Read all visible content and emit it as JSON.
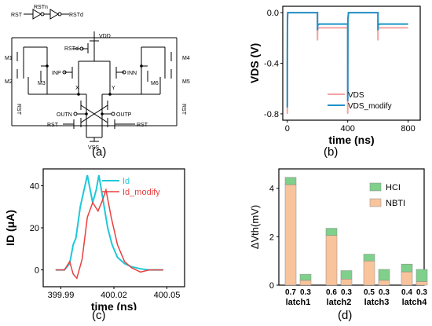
{
  "panels": {
    "a": {
      "label": "(a)",
      "header": {
        "in": "RST",
        "mid": "RSTn",
        "out": "RSTd"
      },
      "labels": {
        "rstd": "RSTd",
        "vdd": "VDD",
        "m1": "M1",
        "m2": "M2",
        "m3": "M3",
        "m4": "M4",
        "m5": "M5",
        "m6": "M6",
        "inp": "INP",
        "inn": "INN",
        "x": "X",
        "y": "Y",
        "rst_left": "RST",
        "rst_right": "RST",
        "outn": "OUTN",
        "outp": "OUTP",
        "rst_bot_left": "RST",
        "rst_bot_right": "RST",
        "vss": "VSS"
      }
    },
    "b": {
      "label": "(b)",
      "xlabel": "time (ns)",
      "ylabel": "VDS (V)",
      "xticks": [
        "0",
        "400",
        "800"
      ],
      "yticks": [
        "0.0",
        "-0.4",
        "-0.8"
      ],
      "legend": [
        "VDS",
        "VDS_modify"
      ],
      "colors": {
        "VDS": "#f4a3a3",
        "VDS_modify": "#1f93c8"
      }
    },
    "c": {
      "label": "(c)",
      "xlabel": "time (ns)",
      "ylabel": "ID (μA)",
      "xticks": [
        "399.99",
        "400.02",
        "400.05"
      ],
      "yticks": [
        "0",
        "20",
        "40"
      ],
      "legend": [
        "Id",
        "Id_modify"
      ],
      "colors": {
        "Id": "#1ec8d8",
        "Id_modify": "#e84040"
      }
    },
    "d": {
      "label": "(d)",
      "ylabel": "ΔVth(mV)",
      "yticks": [
        "0",
        "2",
        "4"
      ],
      "legend": [
        "HCI",
        "NBTI"
      ],
      "colors": {
        "HCI": "#7fd08a",
        "NBTI": "#f9c49c"
      },
      "bar_labels": [
        "0.7",
        "0.3",
        "0.6",
        "0.3",
        "0.5",
        "0.3",
        "0.4",
        "0.3"
      ],
      "groups": [
        "latch1",
        "latch2",
        "latch3",
        "latch4"
      ]
    }
  },
  "chart_data": [
    {
      "type": "line",
      "xlabel": "time (ns)",
      "ylabel": "VDS (V)",
      "xlim": [
        -30,
        880
      ],
      "ylim": [
        -0.85,
        0.05
      ],
      "series": [
        {
          "name": "VDS",
          "x": [
            0,
            0,
            1,
            3,
            200,
            200,
            201,
            210,
            400,
            400,
            401,
            405,
            600,
            600,
            601,
            610,
            800
          ],
          "y": [
            -0.8,
            -0.45,
            -0.1,
            0,
            0,
            -0.22,
            -0.13,
            -0.12,
            -0.12,
            -0.8,
            -0.1,
            0,
            0,
            -0.22,
            -0.13,
            -0.12,
            -0.12
          ]
        },
        {
          "name": "VDS_modify",
          "x": [
            0,
            0,
            1,
            3,
            200,
            200,
            201,
            210,
            400,
            400,
            401,
            405,
            600,
            600,
            601,
            610,
            800
          ],
          "y": [
            -0.75,
            -0.45,
            -0.05,
            0,
            0,
            -0.14,
            -0.1,
            -0.09,
            -0.09,
            -0.7,
            -0.05,
            0,
            0,
            -0.14,
            -0.1,
            -0.09,
            -0.09
          ]
        }
      ]
    },
    {
      "type": "line",
      "xlabel": "time (ns)",
      "ylabel": "ID (μA)",
      "xlim": [
        399.98,
        400.06
      ],
      "ylim": [
        -8,
        48
      ],
      "series": [
        {
          "name": "Id",
          "x": [
            399.987,
            399.992,
            399.995,
            399.997,
            399.9985,
            400.001,
            400.005,
            400.008,
            400.01,
            400.0115,
            400.0135,
            400.0165,
            400.019,
            400.022,
            400.026,
            400.03,
            400.035,
            400.04,
            400.048
          ],
          "y": [
            0,
            0,
            3,
            12,
            15,
            30,
            45,
            32,
            38,
            45,
            35,
            20,
            12,
            6,
            3,
            1.5,
            0.5,
            0,
            0
          ]
        },
        {
          "name": "Id_modify",
          "x": [
            399.987,
            399.992,
            399.995,
            399.997,
            399.999,
            400.002,
            400.005,
            400.008,
            400.011,
            400.0135,
            400.0155,
            400.0185,
            400.022,
            400.026,
            400.03,
            400.035,
            400.04,
            400.048
          ],
          "y": [
            0,
            0,
            4,
            -2,
            -4,
            5,
            25,
            32,
            28,
            33,
            38,
            25,
            12,
            4,
            1,
            -1,
            0,
            0
          ]
        }
      ]
    },
    {
      "type": "bar",
      "categories": [
        "0.7",
        "0.3",
        "0.6",
        "0.3",
        "0.5",
        "0.3",
        "0.4",
        "0.3"
      ],
      "groups": [
        "latch1",
        "latch2",
        "latch3",
        "latch4"
      ],
      "ylabel": "ΔVth(mV)",
      "ylim": [
        0,
        4.8
      ],
      "series": [
        {
          "name": "NBTI",
          "values": [
            4.15,
            0.2,
            2.05,
            0.25,
            1.0,
            0.2,
            0.55,
            0.15
          ]
        },
        {
          "name": "HCI",
          "values": [
            0.3,
            0.25,
            0.3,
            0.35,
            0.28,
            0.45,
            0.32,
            0.5
          ]
        }
      ]
    }
  ]
}
